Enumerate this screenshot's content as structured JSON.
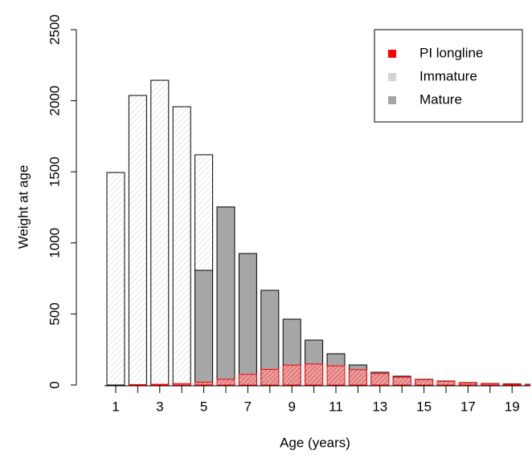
{
  "chart_data": {
    "type": "bar",
    "xlabel": "Age (years)",
    "ylabel": "Weight at age",
    "categories": [
      1,
      null,
      3,
      null,
      5,
      null,
      7,
      null,
      9,
      null,
      11,
      null,
      13,
      null,
      15,
      null,
      17,
      null,
      19,
      null
    ],
    "series": [
      {
        "name": "Mature",
        "color": "#a6a6a6",
        "values": [
          0,
          0,
          0,
          0,
          807,
          1253,
          925,
          666,
          463,
          316,
          220,
          141,
          90,
          62,
          40,
          28,
          17,
          11,
          8,
          5
        ]
      },
      {
        "name": "Immature",
        "color": "#d3d3d3",
        "values": [
          1495,
          2037,
          2144,
          1958,
          813,
          0,
          0,
          0,
          0,
          0,
          0,
          0,
          0,
          0,
          0,
          0,
          0,
          0,
          0,
          0
        ]
      },
      {
        "name": "PI longline",
        "color": "#ff0000",
        "values": [
          0,
          3,
          5,
          10,
          20,
          40,
          75,
          110,
          140,
          148,
          135,
          108,
          80,
          55,
          38,
          26,
          15,
          10,
          6,
          3
        ]
      }
    ],
    "legend_order": [
      "PI longline",
      "Immature",
      "Mature"
    ],
    "ylim": [
      0,
      2500
    ],
    "yticks": [
      0,
      500,
      1000,
      1500,
      2000,
      2500
    ]
  }
}
